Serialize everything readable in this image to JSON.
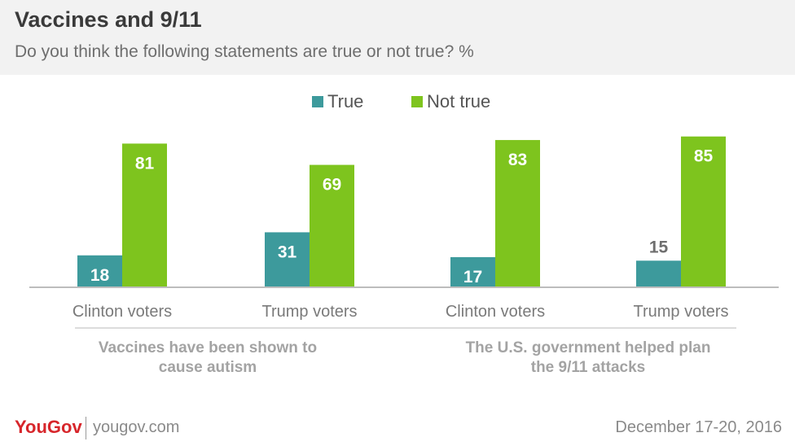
{
  "header": {
    "title": "Vaccines and 9/11",
    "subtitle": "Do you think the following statements are true or not true? %"
  },
  "footer": {
    "brand": "YouGov",
    "url": "yougov.com",
    "date": "December 17-20, 2016"
  },
  "colors": {
    "true": "#3d9a9c",
    "not_true": "#7ec41e",
    "axis": "#bdbdbd",
    "category_text": "#7a7a7a",
    "group_text": "#a3a3a3",
    "brand": "#d7262b"
  },
  "chart_data": {
    "type": "bar",
    "title": "Vaccines and 9/11",
    "subtitle": "Do you think the following statements are true or not true? %",
    "legend_position": "top-center",
    "grid": false,
    "categories": [
      "Clinton voters",
      "Trump voters",
      "Clinton voters",
      "Trump voters"
    ],
    "groups": [
      {
        "label": "Vaccines have been shown to cause autism",
        "lines": [
          "Vaccines have been shown to",
          "cause autism"
        ],
        "categories": [
          0,
          1
        ]
      },
      {
        "label": "The U.S. government helped plan the 9/11 attacks",
        "lines": [
          "The U.S. government helped plan",
          "the 9/11 attacks"
        ],
        "categories": [
          2,
          3
        ]
      }
    ],
    "series": [
      {
        "name": "True",
        "values": [
          18,
          31,
          17,
          15
        ]
      },
      {
        "name": "Not true",
        "values": [
          81,
          69,
          83,
          85
        ]
      }
    ],
    "ylim": [
      0,
      100
    ]
  }
}
